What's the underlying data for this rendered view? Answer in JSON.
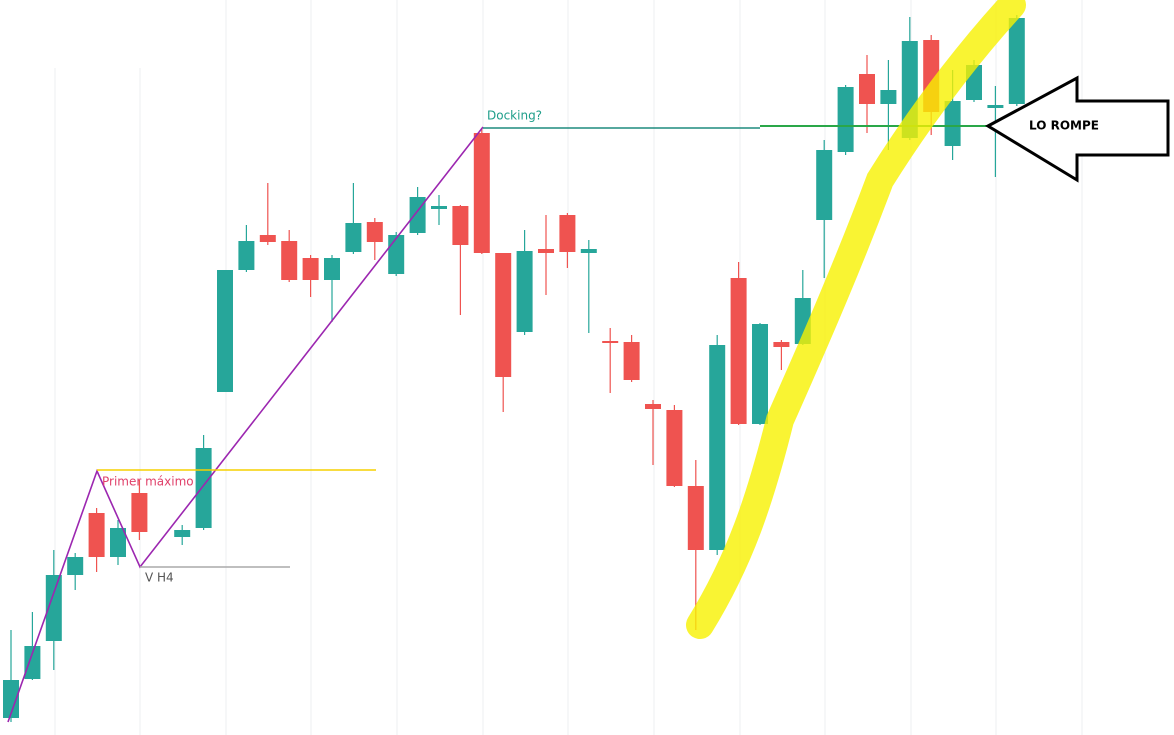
{
  "chart_data": {
    "type": "candlestick",
    "up_color": "#26a69a",
    "down_color": "#ef5350",
    "ylim": [
      0,
      73.5
    ],
    "open": [
      1.7,
      5.6,
      9.4,
      16,
      22.2,
      17.8,
      24.2,
      null,
      19.8,
      20.7,
      34.3,
      46.5,
      50,
      49.4,
      47.7,
      45.5,
      48.3,
      51.3,
      46.1,
      50.2,
      52.6,
      52.9,
      60.2,
      48.2,
      40.3,
      48.6,
      52,
      48.2,
      39.4,
      39.3,
      33.1,
      32.5,
      24.9,
      18.5,
      45.7,
      31.1,
      39.3,
      39.1,
      51.5,
      58.3,
      66.1,
      63.1,
      59.7,
      69.5,
      58.9,
      63.5,
      62.7,
      63.1
    ],
    "high": [
      10.5,
      12.3,
      18.5,
      18.2,
      22.7,
      21.5,
      25.5,
      null,
      21,
      30,
      46.5,
      51,
      55.2,
      50.5,
      48,
      48,
      55.2,
      51.7,
      50.3,
      54.8,
      54,
      53,
      60.7,
      48.2,
      50.5,
      52,
      52.2,
      49.5,
      40.7,
      40,
      33.5,
      33,
      27.5,
      40,
      47.3,
      41.2,
      39.5,
      46.5,
      59.5,
      65,
      68,
      67.5,
      71.8,
      70,
      66.5,
      67.5,
      64.9,
      72
    ],
    "low": [
      1.3,
      5.5,
      6.5,
      14.5,
      16.3,
      17,
      19.5,
      null,
      19,
      20.5,
      34.3,
      46.3,
      49,
      45.3,
      43.8,
      41.3,
      48.1,
      47.5,
      45.9,
      50,
      51,
      42,
      48.1,
      32.3,
      40,
      44,
      46.7,
      40.2,
      34.2,
      35.3,
      27,
      24.8,
      10.5,
      18,
      31,
      31,
      36.5,
      39,
      45.7,
      58,
      60.2,
      58.5,
      59.5,
      60,
      57.5,
      63.3,
      55.8,
      62.9
    ],
    "close": [
      5.5,
      8.9,
      16,
      17.8,
      17.8,
      20.7,
      20.3,
      null,
      20.5,
      28.7,
      46.5,
      49.4,
      49.3,
      45.5,
      45.5,
      47.7,
      51.2,
      49.3,
      50,
      53.8,
      52.9,
      49,
      48.2,
      35.8,
      48.4,
      48.2,
      48.3,
      48.6,
      39.2,
      35.5,
      32.6,
      24.9,
      18.5,
      39,
      31.1,
      41.1,
      38.8,
      43.7,
      58.5,
      64.8,
      63.1,
      64.5,
      69.4,
      62.3,
      63.4,
      67,
      63,
      71.7
    ],
    "annotations": [
      "Docking?",
      "Primer máximo",
      "V H4",
      "LO ROMPE"
    ]
  }
}
